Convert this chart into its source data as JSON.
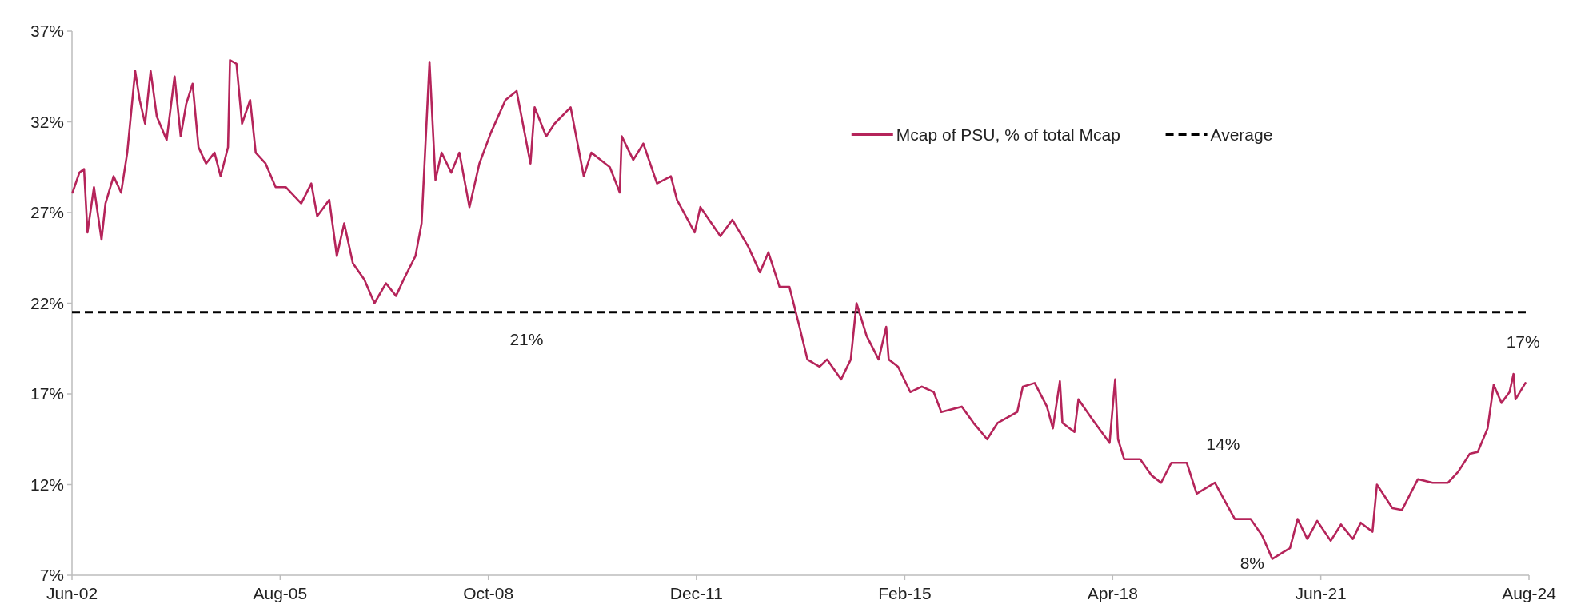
{
  "chart_data": {
    "type": "line",
    "xlim": [
      "2002-06",
      "2024-08"
    ],
    "ylim": [
      7,
      37
    ],
    "xticks": [
      {
        "value": "2002-06",
        "label": "Jun-02"
      },
      {
        "value": "2005-08",
        "label": "Aug-05"
      },
      {
        "value": "2008-10",
        "label": "Oct-08"
      },
      {
        "value": "2011-12",
        "label": "Dec-11"
      },
      {
        "value": "2015-02",
        "label": "Feb-15"
      },
      {
        "value": "2018-04",
        "label": "Apr-18"
      },
      {
        "value": "2021-06",
        "label": "Jun-21"
      },
      {
        "value": "2024-08",
        "label": "Aug-24"
      }
    ],
    "yticks": [
      {
        "value": 7,
        "label": "7%"
      },
      {
        "value": 12,
        "label": "12%"
      },
      {
        "value": 17,
        "label": "17%"
      },
      {
        "value": 22,
        "label": "22%"
      },
      {
        "value": 27,
        "label": "27%"
      },
      {
        "value": 32,
        "label": "32%"
      },
      {
        "value": 37,
        "label": "37%"
      }
    ],
    "legend": "top right",
    "grid": false,
    "ref_lines": [
      {
        "axis": "y",
        "value": 21.5,
        "label": "Average",
        "color": "#000000",
        "line_style": "dashed"
      }
    ],
    "annotations": [
      "21%",
      "14%",
      "8%",
      "17%"
    ],
    "series": [
      {
        "name": "Mcap of PSU, % of total Mcap",
        "color": "#b5245a",
        "x": [
          "2002-06-04",
          "2002-07-12",
          "2002-08-07",
          "2002-08-26",
          "2002-10-01",
          "2002-11-12",
          "2002-12-04",
          "2003-01-18",
          "2003-03-01",
          "2003-04-04",
          "2003-05-18",
          "2003-06-12",
          "2003-07-12",
          "2003-08-12",
          "2003-09-15",
          "2003-11-09",
          "2003-12-23",
          "2004-01-26",
          "2004-02-26",
          "2004-04-01",
          "2004-05-04",
          "2004-06-15",
          "2004-08-01",
          "2004-09-04",
          "2004-10-15",
          "2004-10-26",
          "2004-12-01",
          "2005-01-01",
          "2005-02-15",
          "2005-03-18",
          "2005-05-12",
          "2005-07-07",
          "2005-09-01",
          "2005-11-26",
          "2006-01-21",
          "2006-02-23",
          "2006-05-01",
          "2006-06-12",
          "2006-07-23",
          "2006-09-09",
          "2006-11-12",
          "2007-01-07",
          "2007-03-12",
          "2007-05-07",
          "2007-06-18",
          "2007-08-23",
          "2007-09-26",
          "2007-11-09",
          "2007-12-12",
          "2008-01-15",
          "2008-03-09",
          "2008-04-23",
          "2008-06-18",
          "2008-08-12",
          "2008-10-15",
          "2009-01-04",
          "2009-03-07",
          "2009-05-23",
          "2009-06-15",
          "2009-08-18",
          "2009-10-04",
          "2010-01-01",
          "2010-03-15",
          "2010-04-26",
          "2010-08-07",
          "2010-10-01",
          "2010-10-12",
          "2010-12-15",
          "2011-02-09",
          "2011-04-26",
          "2011-07-12",
          "2011-08-15",
          "2011-11-21",
          "2011-12-23",
          "2012-04-12",
          "2012-06-18",
          "2012-09-15",
          "2012-11-18",
          "2013-01-04",
          "2013-03-07",
          "2013-05-01",
          "2013-06-26",
          "2013-08-09",
          "2013-10-15",
          "2013-11-26",
          "2014-02-12",
          "2014-04-07",
          "2014-05-09",
          "2014-07-04",
          "2014-09-09",
          "2014-10-21",
          "2014-11-04",
          "2014-12-26",
          "2015-03-04",
          "2015-05-07",
          "2015-07-12",
          "2015-08-23",
          "2015-12-15",
          "2016-02-18",
          "2016-05-04",
          "2016-07-01",
          "2016-10-18",
          "2016-11-18",
          "2017-01-23",
          "2017-04-01",
          "2017-05-04",
          "2017-06-12",
          "2017-06-26",
          "2017-09-01",
          "2017-09-23",
          "2017-12-09",
          "2018-03-15",
          "2018-04-15",
          "2018-05-01",
          "2018-06-04",
          "2018-09-01",
          "2018-11-04",
          "2018-12-26",
          "2019-02-21",
          "2019-05-18",
          "2019-07-12",
          "2019-10-21",
          "2020-02-09",
          "2020-05-07",
          "2020-07-09",
          "2020-09-04",
          "2020-12-12",
          "2021-01-23",
          "2021-03-18",
          "2021-05-12",
          "2021-07-26",
          "2021-09-21",
          "2021-11-26",
          "2022-01-09",
          "2022-03-15",
          "2022-04-09",
          "2022-07-04",
          "2022-08-26",
          "2022-11-23",
          "2023-02-12",
          "2023-05-09",
          "2023-07-04",
          "2023-09-07",
          "2023-10-21",
          "2023-12-15",
          "2024-01-18",
          "2024-03-01",
          "2024-04-15",
          "2024-05-07",
          "2024-05-18",
          "2024-07-12"
        ],
        "values": [
          28.1,
          29.2,
          29.4,
          25.9,
          28.4,
          25.5,
          27.5,
          29.0,
          28.1,
          30.3,
          34.8,
          33.2,
          31.9,
          34.8,
          32.3,
          31.0,
          34.5,
          31.2,
          33.0,
          34.1,
          30.6,
          29.7,
          30.3,
          29.0,
          30.6,
          35.4,
          35.2,
          31.9,
          33.2,
          30.3,
          29.7,
          28.4,
          28.4,
          27.5,
          28.6,
          26.8,
          27.7,
          24.6,
          26.4,
          24.2,
          23.3,
          22.0,
          23.1,
          22.4,
          23.3,
          24.6,
          26.4,
          35.3,
          28.8,
          30.3,
          29.2,
          30.3,
          27.3,
          29.7,
          31.4,
          33.2,
          33.7,
          29.7,
          32.8,
          31.2,
          31.9,
          32.8,
          29.0,
          30.3,
          29.5,
          28.1,
          31.2,
          29.9,
          30.8,
          28.6,
          29.0,
          27.7,
          25.9,
          27.3,
          25.7,
          26.6,
          25.1,
          23.7,
          24.8,
          22.9,
          22.9,
          20.7,
          18.9,
          18.5,
          18.9,
          17.8,
          18.9,
          22.0,
          20.2,
          18.9,
          20.7,
          18.9,
          18.5,
          17.1,
          17.4,
          17.1,
          16.0,
          16.3,
          15.4,
          14.5,
          15.4,
          16.0,
          17.4,
          17.6,
          16.3,
          15.1,
          17.7,
          15.4,
          14.9,
          16.7,
          15.6,
          14.3,
          17.8,
          14.5,
          13.4,
          13.4,
          12.5,
          12.1,
          13.2,
          13.2,
          11.5,
          12.1,
          10.1,
          10.1,
          9.2,
          7.9,
          8.5,
          10.1,
          9.0,
          10.0,
          8.9,
          9.8,
          9.0,
          9.9,
          9.4,
          12.0,
          10.7,
          10.6,
          12.3,
          12.1,
          12.1,
          12.7,
          13.7,
          13.8,
          15.1,
          17.5,
          16.5,
          17.1,
          18.1,
          16.7,
          17.6
        ]
      }
    ]
  }
}
